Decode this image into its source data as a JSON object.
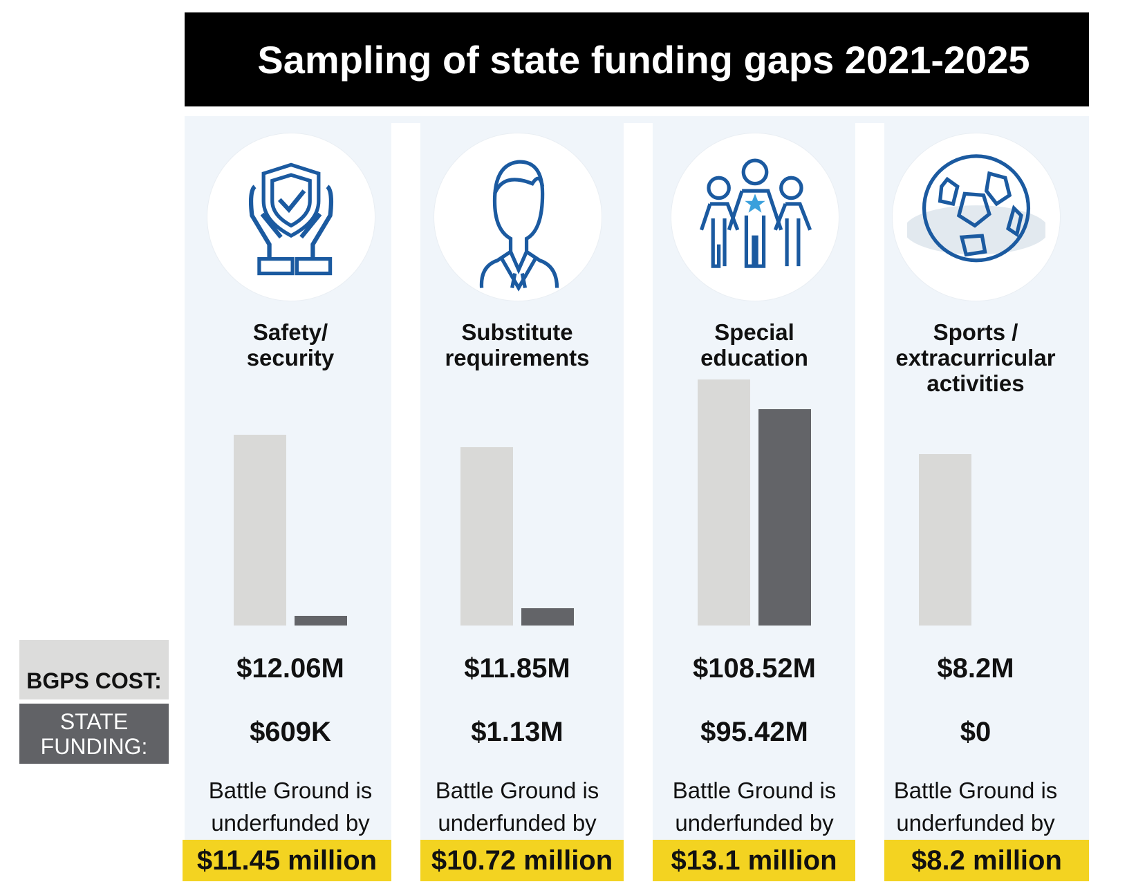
{
  "chart_data": {
    "type": "bar",
    "title": "Sampling of state funding gaps 2021-2025",
    "unit": "USD millions",
    "categories": [
      "Safety/ security",
      "Substitute requirements",
      "Special education",
      "Sports / extracurricular activities"
    ],
    "series": [
      {
        "name": "BGPS COST:",
        "values": [
          12.06,
          11.85,
          108.52,
          8.2
        ],
        "color": "#d9d9d7"
      },
      {
        "name": "STATE FUNDING:",
        "values": [
          0.609,
          1.13,
          95.42,
          0
        ],
        "color": "#636468"
      }
    ],
    "legend_position": "left",
    "grid": false
  },
  "legend": {
    "cost_label": "BGPS COST:",
    "state_line1": "STATE",
    "state_line2": "FUNDING:"
  },
  "columns": [
    {
      "icon": "shield-hands-icon",
      "label1": "Safety/",
      "label2": "security",
      "label3": "",
      "cost": "$12.06M",
      "state": "$609K",
      "note1": "Battle Ground is",
      "note2": "underfunded by",
      "gap": "$11.45 million"
    },
    {
      "icon": "person-suit-icon",
      "label1": "Substitute",
      "label2": "requirements",
      "label3": "",
      "cost": "$11.85M",
      "state": "$1.13M",
      "note1": "Battle Ground is",
      "note2": "underfunded by",
      "gap": "$10.72 million"
    },
    {
      "icon": "group-star-icon",
      "label1": "Special",
      "label2": "education",
      "label3": "",
      "cost": "$108.52M",
      "state": "$95.42M",
      "note1": "Battle Ground is",
      "note2": "underfunded by",
      "gap": "$13.1 million"
    },
    {
      "icon": "soccer-ball-icon",
      "label1": "Sports /",
      "label2": "extracurricular",
      "label3": "activities",
      "cost": "$8.2M",
      "state": "$0",
      "note1": "Battle Ground is",
      "note2": "underfunded by",
      "gap": "$8.2 million"
    }
  ],
  "colors": {
    "icon": "#1b5aa0",
    "highlight": "#f3d321",
    "panel": "#f0f5fa",
    "star": "#3aa0dc"
  }
}
